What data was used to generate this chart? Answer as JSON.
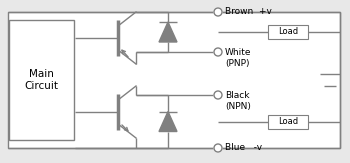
{
  "bg_color": "#e8e8e8",
  "line_color": "#808080",
  "text_color": "#000000",
  "fig_width": 3.5,
  "fig_height": 1.63,
  "dpi": 100,
  "labels": {
    "brown": "Brown  +v",
    "white": "White\n(PNP)",
    "black": "Black\n(NPN)",
    "blue": "Blue   -v"
  }
}
